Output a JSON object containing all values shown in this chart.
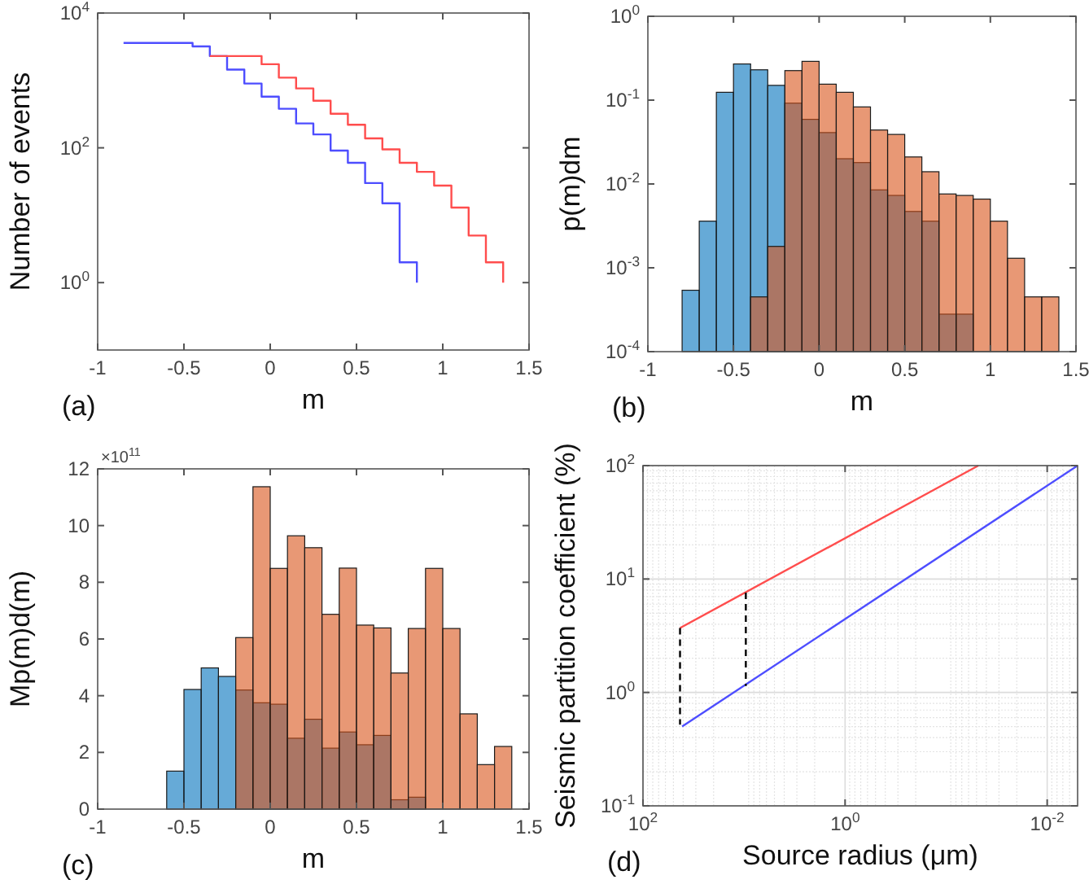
{
  "chart_data": [
    {
      "type": "step",
      "xlabel": "m",
      "ylabel": "Number of events",
      "annotations": [
        "(a)"
      ],
      "log": true,
      "xlim": [
        -1,
        1.5
      ],
      "xticks": [
        -1,
        -0.5,
        0,
        0.5,
        1,
        1.5
      ],
      "ylim": [
        0.1,
        10000
      ],
      "yticks": [
        {
          "value": 1,
          "label": "10$^{0}$"
        },
        {
          "value": 100,
          "label": "10$^{2}$"
        },
        {
          "value": 10000,
          "label": "10$^{4}$"
        }
      ],
      "series": [
        {
          "color": "#4d4dff",
          "x": [
            -0.85,
            -0.45,
            -0.35,
            -0.25,
            -0.15,
            -0.05,
            0.05,
            0.15,
            0.25,
            0.35,
            0.45,
            0.55,
            0.65,
            0.75,
            0.85
          ],
          "values": [
            3600,
            3200,
            2300,
            1450,
            900,
            575,
            380,
            230,
            158,
            91,
            60,
            30,
            15,
            2,
            1
          ]
        },
        {
          "color": "#ff4d4d",
          "x": [
            -0.35,
            -0.05,
            0.05,
            0.15,
            0.25,
            0.35,
            0.45,
            0.55,
            0.65,
            0.75,
            0.85,
            0.95,
            1.05,
            1.15,
            1.25,
            1.35
          ],
          "values": [
            2300,
            1740,
            1100,
            760,
            500,
            320,
            220,
            138,
            95,
            60,
            44,
            27.5,
            13,
            5,
            2,
            1
          ]
        }
      ]
    },
    {
      "type": "histogram",
      "xlabel": "m",
      "ylabel": "p(m)dm",
      "annotations": [
        "(b)"
      ],
      "log": true,
      "xlim": [
        -1,
        1.5
      ],
      "xticks": [
        -1,
        -0.5,
        0,
        0.5,
        1,
        1.5
      ],
      "ylim": [
        0.0001,
        1
      ],
      "yticks": [
        {
          "value": 0.0001,
          "label": "10$^{-4}$"
        },
        {
          "value": 0.001,
          "label": "10$^{-3}$"
        },
        {
          "value": 0.01,
          "label": "10$^{-2}$"
        },
        {
          "value": 0.1,
          "label": "10$^{-1}$"
        },
        {
          "value": 1,
          "label": "10$^{0}$"
        }
      ],
      "bins": [
        -0.8,
        -0.7,
        -0.6,
        -0.5,
        -0.4,
        -0.3,
        -0.2,
        -0.1,
        0,
        0.1,
        0.2,
        0.3,
        0.4,
        0.5,
        0.6,
        0.7,
        0.8,
        0.9,
        1,
        1.1,
        1.2,
        1.3,
        1.4
      ],
      "series": [
        {
          "color": "#0072bd",
          "values": [
            0.00054,
            0.0036,
            0.124,
            0.27,
            0.23,
            0.15,
            0.092,
            0.059,
            0.041,
            0.02,
            0.018,
            0.0085,
            0.0073,
            0.0047,
            0.0036,
            0.00028,
            0.00028,
            null,
            null,
            null,
            null,
            null
          ]
        },
        {
          "color": "#d95319",
          "values": [
            null,
            null,
            null,
            null,
            0.00045,
            0.0018,
            0.225,
            0.29,
            0.155,
            0.124,
            0.083,
            0.044,
            0.039,
            0.021,
            0.014,
            0.0076,
            0.0073,
            0.0066,
            0.0036,
            0.0013,
            0.00045,
            0.00045
          ]
        }
      ]
    },
    {
      "type": "histogram",
      "xlabel": "m",
      "ylabel": "Mp(m)d(m)",
      "annotations": [
        "(c)",
        "×10$^{11}$"
      ],
      "xlim": [
        -1,
        1.5
      ],
      "xticks": [
        -1,
        -0.5,
        0,
        0.5,
        1,
        1.5
      ],
      "ylim": [
        0,
        12
      ],
      "yticks": [
        0,
        2,
        4,
        6,
        8,
        10,
        12
      ],
      "bins": [
        -0.6,
        -0.5,
        -0.4,
        -0.3,
        -0.2,
        -0.1,
        0,
        0.1,
        0.2,
        0.3,
        0.4,
        0.5,
        0.6,
        0.7,
        0.8,
        0.9,
        1,
        1.1,
        1.2,
        1.3,
        1.4
      ],
      "series": [
        {
          "color": "#0072bd",
          "values": [
            1.34,
            4.22,
            4.98,
            4.68,
            4.2,
            3.75,
            3.7,
            2.5,
            3.17,
            2.15,
            2.72,
            2.27,
            2.6,
            0.33,
            0.42,
            null,
            null,
            null,
            null,
            null
          ]
        },
        {
          "color": "#d95319",
          "values": [
            null,
            null,
            null,
            null,
            6.05,
            11.37,
            8.49,
            9.64,
            9.22,
            6.87,
            8.5,
            6.49,
            6.39,
            4.8,
            6.37,
            8.49,
            6.37,
            3.36,
            1.57,
            2.21
          ]
        }
      ]
    },
    {
      "type": "line",
      "xlabel": "Source radius (μm)",
      "ylabel": "Seismic partition coefficient (%)",
      "annotations": [
        "(d)"
      ],
      "log": "xy",
      "grid": true,
      "xlim": [
        100,
        0.005
      ],
      "xticks": [
        {
          "value": 100,
          "label": "10$^{2}$"
        },
        {
          "value": 1,
          "label": "10$^{0}$"
        },
        {
          "value": 0.01,
          "label": "10$^{-2}$"
        }
      ],
      "ylim": [
        0.1,
        100
      ],
      "yticks": [
        {
          "value": 0.1,
          "label": "10$^{-1}$"
        },
        {
          "value": 1,
          "label": "10$^{0}$"
        },
        {
          "value": 10,
          "label": "10$^{1}$"
        },
        {
          "value": 100,
          "label": "10$^{2}$"
        }
      ],
      "series": [
        {
          "color": "#ff4d4d",
          "x": [
            43,
            0.048
          ],
          "values": [
            3.7,
            100
          ]
        },
        {
          "color": "#4d4dff",
          "x": [
            41,
            0.005
          ],
          "values": [
            0.5,
            100
          ]
        },
        {
          "color": "#000000",
          "line_style": "dashed",
          "x": [
            43,
            43
          ],
          "values": [
            3.7,
            0.52
          ]
        },
        {
          "color": "#000000",
          "line_style": "dashed",
          "x": [
            9.6,
            9.6
          ],
          "values": [
            7.6,
            1.14
          ]
        }
      ]
    }
  ]
}
